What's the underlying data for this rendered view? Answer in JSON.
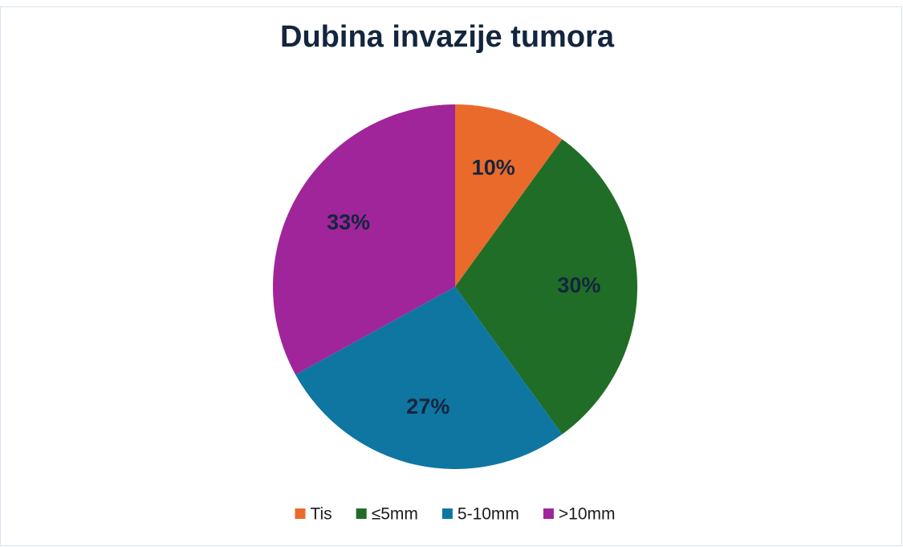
{
  "chart_data": {
    "type": "pie",
    "title": "Dubina invazije tumora",
    "categories": [
      "Tis",
      "≤5mm",
      "5-10mm",
      ">10mm"
    ],
    "values": [
      10,
      30,
      27,
      33
    ],
    "value_labels": [
      "10%",
      "30%",
      "27%",
      "33%"
    ],
    "colors": [
      "#ea6a2c",
      "#1f6d26",
      "#0f76a2",
      "#a0259a"
    ],
    "legend": "bottom"
  }
}
